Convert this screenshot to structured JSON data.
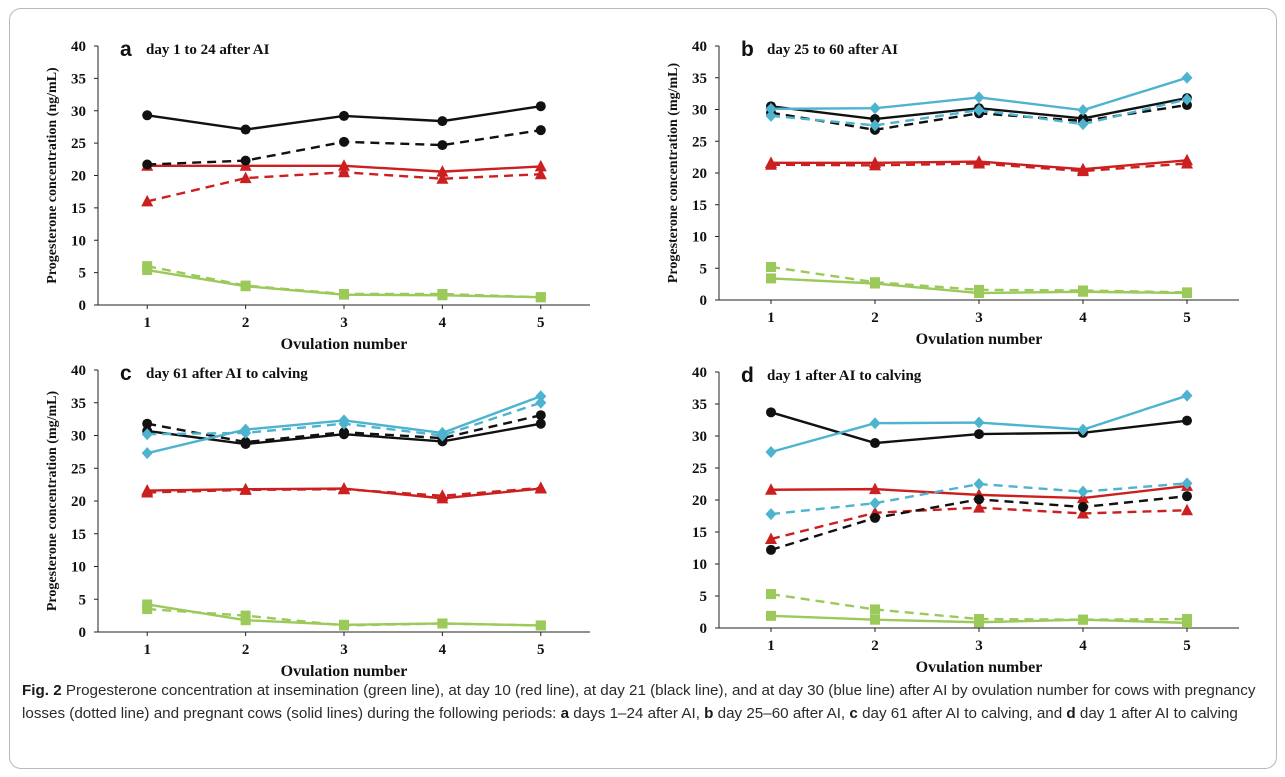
{
  "figure": {
    "caption": {
      "label": "Fig. 2",
      "segments": [
        {
          "text": "Progesterone concentration at insemination (green line), at day 10 (red line), at day 21 (black line), and at day 30 (blue line) after AI by ovulation number for cows with pregnancy losses (dotted line) and pregnant cows (solid lines) during the following periods: ",
          "bold": false
        },
        {
          "text": "a",
          "bold": true
        },
        {
          "text": " days 1–24 after AI, ",
          "bold": false
        },
        {
          "text": "b",
          "bold": true
        },
        {
          "text": " day 25–60 after AI, ",
          "bold": false
        },
        {
          "text": "c",
          "bold": true
        },
        {
          "text": " day 61 after AI to calving, and ",
          "bold": false
        },
        {
          "text": "d",
          "bold": true
        },
        {
          "text": " day 1 after AI to calving",
          "bold": false
        }
      ]
    }
  },
  "colors": {
    "green": "#9bc95a",
    "red": "#cc1f1f",
    "black": "#111111",
    "blue": "#4db3cf",
    "axis": "#222222"
  },
  "chart_data": [
    {
      "type": "line",
      "panel_letter": "a",
      "title": "day 1 to 24 after AI",
      "xlabel": "Ovulation number",
      "ylabel": "Progesterone concentration (ng/mL)",
      "x": [
        1,
        2,
        3,
        4,
        5
      ],
      "ylim": [
        0,
        40
      ],
      "yticks": [
        0,
        5,
        10,
        15,
        20,
        25,
        30,
        35,
        40
      ],
      "grid": false,
      "legend": "none",
      "series": [
        {
          "color": "green",
          "style": "solid",
          "marker": "square",
          "values": [
            5.4,
            2.9,
            1.6,
            1.5,
            1.2
          ]
        },
        {
          "color": "green",
          "style": "dashed",
          "marker": "square",
          "values": [
            6.0,
            3.0,
            1.7,
            1.7,
            1.2
          ]
        },
        {
          "color": "red",
          "style": "solid",
          "marker": "triangle",
          "values": [
            21.5,
            21.5,
            21.5,
            20.6,
            21.4
          ]
        },
        {
          "color": "red",
          "style": "dashed",
          "marker": "triangle",
          "values": [
            16.0,
            19.6,
            20.5,
            19.5,
            20.2
          ]
        },
        {
          "color": "black",
          "style": "solid",
          "marker": "circle",
          "values": [
            29.3,
            27.1,
            29.2,
            28.4,
            30.7
          ]
        },
        {
          "color": "black",
          "style": "dashed",
          "marker": "circle",
          "values": [
            21.7,
            22.3,
            25.2,
            24.7,
            27.0
          ]
        }
      ]
    },
    {
      "type": "line",
      "panel_letter": "b",
      "title": "day 25 to 60 after AI",
      "xlabel": "Ovulation number",
      "ylabel": "Progesterone concentration (mg/mL)",
      "x": [
        1,
        2,
        3,
        4,
        5
      ],
      "ylim": [
        0,
        40
      ],
      "yticks": [
        0,
        5,
        10,
        15,
        20,
        25,
        30,
        35,
        40
      ],
      "grid": false,
      "legend": "none",
      "series": [
        {
          "color": "green",
          "style": "solid",
          "marker": "square",
          "values": [
            3.4,
            2.6,
            1.1,
            1.3,
            1.1
          ]
        },
        {
          "color": "green",
          "style": "dashed",
          "marker": "square",
          "values": [
            5.2,
            2.8,
            1.6,
            1.5,
            1.2
          ]
        },
        {
          "color": "red",
          "style": "solid",
          "marker": "triangle",
          "values": [
            21.6,
            21.6,
            21.8,
            20.6,
            22.0
          ]
        },
        {
          "color": "red",
          "style": "dashed",
          "marker": "triangle",
          "values": [
            21.3,
            21.2,
            21.5,
            20.3,
            21.5
          ]
        },
        {
          "color": "black",
          "style": "solid",
          "marker": "circle",
          "values": [
            30.5,
            28.5,
            30.2,
            28.6,
            31.8
          ]
        },
        {
          "color": "black",
          "style": "dashed",
          "marker": "circle",
          "values": [
            29.5,
            26.8,
            29.4,
            28.2,
            30.7
          ]
        },
        {
          "color": "blue",
          "style": "solid",
          "marker": "diamond",
          "values": [
            30.1,
            30.2,
            31.9,
            29.9,
            35.0
          ]
        },
        {
          "color": "blue",
          "style": "dashed",
          "marker": "diamond",
          "values": [
            29.0,
            27.5,
            29.9,
            27.7,
            31.6
          ]
        }
      ]
    },
    {
      "type": "line",
      "panel_letter": "c",
      "title": "day 61 after AI to calving",
      "xlabel": "Ovulation number",
      "ylabel": "Progesterone concentration (mg/mL)",
      "x": [
        1,
        2,
        3,
        4,
        5
      ],
      "ylim": [
        0,
        40
      ],
      "yticks": [
        0,
        5,
        10,
        15,
        20,
        25,
        30,
        35,
        40
      ],
      "grid": false,
      "legend": "none",
      "series": [
        {
          "color": "green",
          "style": "solid",
          "marker": "square",
          "values": [
            4.2,
            1.8,
            1.1,
            1.3,
            1.0
          ]
        },
        {
          "color": "green",
          "style": "dashed",
          "marker": "square",
          "values": [
            3.5,
            2.5,
            1.0,
            1.3,
            1.0
          ]
        },
        {
          "color": "red",
          "style": "solid",
          "marker": "triangle",
          "values": [
            21.6,
            21.8,
            21.9,
            20.4,
            21.9
          ]
        },
        {
          "color": "red",
          "style": "dashed",
          "marker": "triangle",
          "values": [
            21.3,
            21.7,
            21.8,
            20.8,
            22.0
          ]
        },
        {
          "color": "black",
          "style": "solid",
          "marker": "circle",
          "values": [
            30.7,
            28.7,
            30.2,
            29.1,
            31.8
          ]
        },
        {
          "color": "black",
          "style": "dashed",
          "marker": "circle",
          "values": [
            31.8,
            29.0,
            30.5,
            29.6,
            33.1
          ]
        },
        {
          "color": "blue",
          "style": "solid",
          "marker": "diamond",
          "values": [
            27.3,
            30.9,
            32.3,
            30.4,
            36.0
          ]
        },
        {
          "color": "blue",
          "style": "dashed",
          "marker": "diamond",
          "values": [
            30.2,
            30.4,
            31.8,
            30.0,
            35.0
          ]
        }
      ]
    },
    {
      "type": "line",
      "panel_letter": "d",
      "title": "day 1 after AI to calving",
      "xlabel": "Ovulation number",
      "ylabel": "",
      "x": [
        1,
        2,
        3,
        4,
        5
      ],
      "ylim": [
        0,
        40
      ],
      "yticks": [
        0,
        5,
        10,
        15,
        20,
        25,
        30,
        35,
        40
      ],
      "grid": false,
      "legend": "none",
      "series": [
        {
          "color": "green",
          "style": "solid",
          "marker": "square",
          "values": [
            1.9,
            1.3,
            0.9,
            1.3,
            0.8
          ]
        },
        {
          "color": "green",
          "style": "dashed",
          "marker": "square",
          "values": [
            5.3,
            2.9,
            1.4,
            1.3,
            1.4
          ]
        },
        {
          "color": "red",
          "style": "solid",
          "marker": "triangle",
          "values": [
            21.6,
            21.7,
            20.8,
            20.3,
            22.2
          ]
        },
        {
          "color": "red",
          "style": "dashed",
          "marker": "triangle",
          "values": [
            13.9,
            18.0,
            18.8,
            17.9,
            18.4
          ]
        },
        {
          "color": "black",
          "style": "solid",
          "marker": "circle",
          "values": [
            33.7,
            28.9,
            30.3,
            30.5,
            32.4
          ]
        },
        {
          "color": "black",
          "style": "dashed",
          "marker": "circle",
          "values": [
            12.2,
            17.2,
            20.1,
            18.9,
            20.6
          ]
        },
        {
          "color": "blue",
          "style": "solid",
          "marker": "diamond",
          "values": [
            27.5,
            32.0,
            32.1,
            31.0,
            36.3
          ]
        },
        {
          "color": "blue",
          "style": "dashed",
          "marker": "diamond",
          "values": [
            17.8,
            19.5,
            22.5,
            21.3,
            22.6
          ]
        }
      ]
    }
  ]
}
